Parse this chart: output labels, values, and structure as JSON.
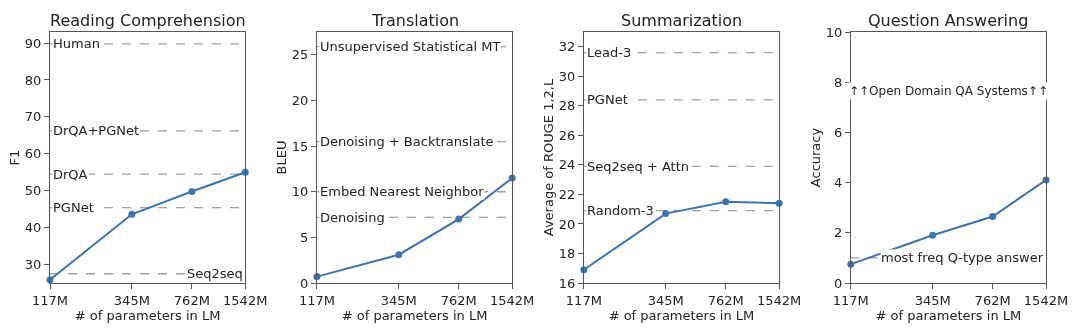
{
  "chart_data": [
    {
      "type": "line",
      "title": "Reading Comprehension",
      "xlabel": "# of parameters in LM",
      "ylabel": "F1",
      "log": "x",
      "grid": false,
      "marker": "circle",
      "line_style": "solid",
      "x": [
        117,
        345,
        762,
        1542
      ],
      "series": [
        {
          "color": "#3d74ad",
          "values": [
            25.9,
            43.6,
            49.8,
            55.0
          ]
        }
      ],
      "xlim": [
        117,
        1542
      ],
      "xticks": [
        {
          "value": 117,
          "label": "117M"
        },
        {
          "value": 345,
          "label": "345M"
        },
        {
          "value": 762,
          "label": "762M"
        },
        {
          "value": 1542,
          "label": "1542M"
        }
      ],
      "ylim": [
        25,
        93
      ],
      "yticks": [
        30,
        40,
        50,
        60,
        70,
        80,
        90
      ],
      "ref_lines": [
        {
          "axis": "y",
          "value": 89.8,
          "label": "Human",
          "color": "#a0a0a0",
          "line_style": "dashed"
        },
        {
          "axis": "y",
          "value": 66.2,
          "label": "DrQA+PGNet",
          "color": "#a0a0a0",
          "line_style": "dashed"
        },
        {
          "axis": "y",
          "value": 54.5,
          "label": "DrQA",
          "color": "#a0a0a0",
          "line_style": "dashed"
        },
        {
          "axis": "y",
          "value": 45.4,
          "label": "PGNet",
          "color": "#a0a0a0",
          "line_style": "dashed"
        },
        {
          "axis": "y",
          "value": 27.5,
          "label": "Seq2seq",
          "color": "#a0a0a0",
          "line_style": "dashed"
        }
      ]
    },
    {
      "type": "line",
      "title": "Translation",
      "xlabel": "# of parameters in LM",
      "ylabel": "BLEU",
      "log": "x",
      "grid": false,
      "marker": "circle",
      "line_style": "solid",
      "x": [
        117,
        345,
        762,
        1542
      ],
      "series": [
        {
          "color": "#3d74ad",
          "values": [
            0.7,
            3.1,
            7.0,
            11.5
          ]
        }
      ],
      "xlim": [
        117,
        1542
      ],
      "xticks": [
        {
          "value": 117,
          "label": "117M"
        },
        {
          "value": 345,
          "label": "345M"
        },
        {
          "value": 762,
          "label": "762M"
        },
        {
          "value": 1542,
          "label": "1542M"
        }
      ],
      "ylim": [
        0,
        27.5
      ],
      "yticks": [
        0,
        5,
        10,
        15,
        20,
        25
      ],
      "ref_lines": [
        {
          "axis": "y",
          "value": 25.9,
          "label": "Unsupervised Statistical MT",
          "color": "#a0a0a0",
          "line_style": "dashed"
        },
        {
          "axis": "y",
          "value": 15.5,
          "label": "Denoising + Backtranslate",
          "color": "#a0a0a0",
          "line_style": "dashed"
        },
        {
          "axis": "y",
          "value": 10.0,
          "label": "Embed Nearest Neighbor",
          "color": "#a0a0a0",
          "line_style": "dashed"
        },
        {
          "axis": "y",
          "value": 7.2,
          "label": "Denoising",
          "color": "#a0a0a0",
          "line_style": "dashed"
        }
      ]
    },
    {
      "type": "line",
      "title": "Summarization",
      "xlabel": "# of parameters in LM",
      "ylabel": "Average of ROUGE 1,2,L",
      "log": "x",
      "grid": false,
      "marker": "circle",
      "line_style": "solid",
      "x": [
        117,
        345,
        762,
        1542
      ],
      "series": [
        {
          "color": "#3d74ad",
          "values": [
            16.9,
            20.7,
            21.5,
            21.4
          ]
        }
      ],
      "xlim": [
        117,
        1542
      ],
      "xticks": [
        {
          "value": 117,
          "label": "117M"
        },
        {
          "value": 345,
          "label": "345M"
        },
        {
          "value": 762,
          "label": "762M"
        },
        {
          "value": 1542,
          "label": "1542M"
        }
      ],
      "ylim": [
        16,
        33
      ],
      "yticks": [
        16,
        18,
        20,
        22,
        24,
        26,
        28,
        30,
        32
      ],
      "ref_lines": [
        {
          "axis": "y",
          "value": 31.6,
          "label": "Lead-3",
          "color": "#a0a0a0",
          "line_style": "dashed"
        },
        {
          "axis": "y",
          "value": 28.4,
          "label": "PGNet",
          "color": "#a0a0a0",
          "line_style": "dashed"
        },
        {
          "axis": "y",
          "value": 23.9,
          "label": "Seq2seq + Attn",
          "color": "#a0a0a0",
          "line_style": "dashed"
        },
        {
          "axis": "y",
          "value": 20.9,
          "label": "Random-3",
          "color": "#a0a0a0",
          "line_style": "dashed"
        }
      ]
    },
    {
      "type": "line",
      "title": "Question Answering",
      "xlabel": "# of parameters in LM",
      "ylabel": "Accuracy",
      "log": "x",
      "grid": false,
      "marker": "circle",
      "line_style": "solid",
      "x": [
        117,
        345,
        762,
        1542
      ],
      "series": [
        {
          "color": "#3d74ad",
          "values": [
            0.75,
            1.9,
            2.65,
            4.1
          ]
        }
      ],
      "xlim": [
        117,
        1542
      ],
      "xticks": [
        {
          "value": 117,
          "label": "117M"
        },
        {
          "value": 345,
          "label": "345M"
        },
        {
          "value": 762,
          "label": "762M"
        },
        {
          "value": 1542,
          "label": "1542M"
        }
      ],
      "ylim": [
        0,
        10
      ],
      "yticks": [
        0,
        2,
        4,
        6,
        8,
        10
      ],
      "ref_lines": [
        {
          "axis": "y",
          "value": 1.0,
          "label": "most freq Q-type answer",
          "color": "#a0a0a0",
          "line_style": "dashed"
        }
      ],
      "annotations": [
        "↑↑Open Domain QA Systems↑↑"
      ]
    }
  ]
}
